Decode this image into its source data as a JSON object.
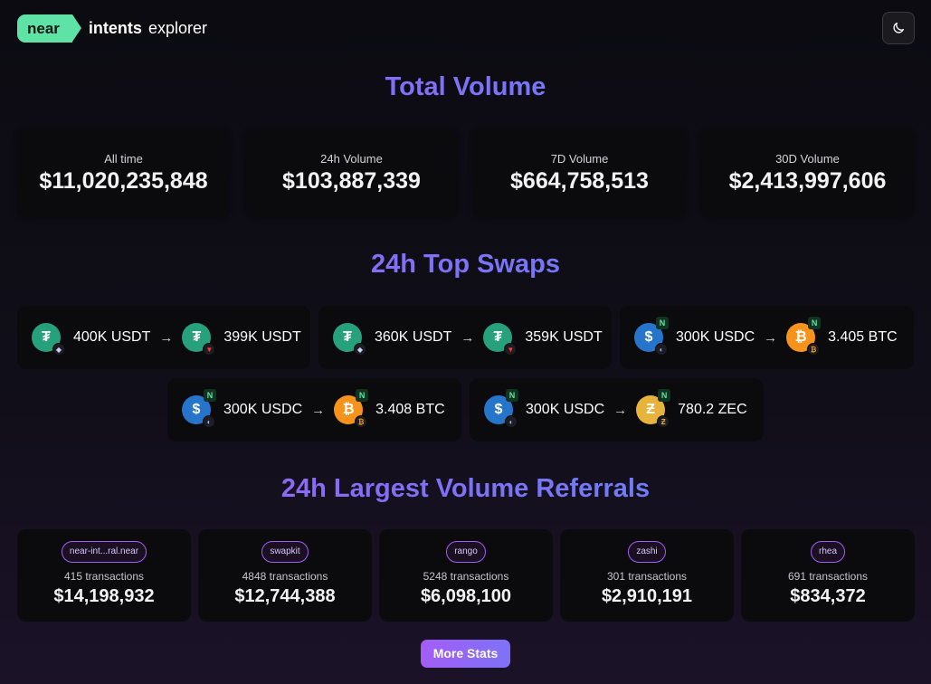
{
  "header": {
    "logo_near": "near",
    "logo_intents": "intents",
    "logo_explorer": "explorer"
  },
  "total_volume": {
    "title": "Total Volume",
    "cards": [
      {
        "label": "All time",
        "value": "$11,020,235,848"
      },
      {
        "label": "24h Volume",
        "value": "$103,887,339"
      },
      {
        "label": "7D Volume",
        "value": "$664,758,513"
      },
      {
        "label": "30D Volume",
        "value": "$2,413,997,606"
      }
    ]
  },
  "top_swaps": {
    "title": "24h Top Swaps",
    "swaps": [
      {
        "from_amount": "400K USDT",
        "to_amount": "399K USDT",
        "from_icon": "usdt-icon",
        "to_icon": "usdt-icon",
        "from_chain": "ethereum-icon",
        "to_chain": "tron-icon"
      },
      {
        "from_amount": "360K USDT",
        "to_amount": "359K USDT",
        "from_icon": "usdt-icon",
        "to_icon": "usdt-icon",
        "from_chain": "ethereum-icon",
        "to_chain": "tron-icon"
      },
      {
        "from_amount": "300K USDC",
        "to_amount": "3.405 BTC",
        "from_icon": "usdc-icon",
        "to_icon": "btc-icon",
        "from_chain": "usdc-chain-icon",
        "to_chain": "bitcoin-chain-icon"
      },
      {
        "from_amount": "300K USDC",
        "to_amount": "3.408 BTC",
        "from_icon": "usdc-icon",
        "to_icon": "btc-icon",
        "from_chain": "usdc-chain-icon",
        "to_chain": "bitcoin-chain-icon"
      },
      {
        "from_amount": "300K USDC",
        "to_amount": "780.2 ZEC",
        "from_icon": "usdc-icon",
        "to_icon": "zec-icon",
        "from_chain": "usdc-chain-icon",
        "to_chain": "zcash-chain-icon"
      }
    ]
  },
  "referrals": {
    "title": "24h Largest Volume Referrals",
    "cards": [
      {
        "name": "near-int...ral.near",
        "transactions": "415 transactions",
        "value": "$14,198,932"
      },
      {
        "name": "swapkit",
        "transactions": "4848 transactions",
        "value": "$12,744,388"
      },
      {
        "name": "rango",
        "transactions": "5248 transactions",
        "value": "$6,098,100"
      },
      {
        "name": "zashi",
        "transactions": "301 transactions",
        "value": "$2,910,191"
      },
      {
        "name": "rhea",
        "transactions": "691 transactions",
        "value": "$834,372"
      }
    ]
  },
  "more_stats_label": "More Stats",
  "colors": {
    "accent_green": "#5fe2a6",
    "accent_purple": "#a35df5",
    "accent_blue": "#5a8df8",
    "card_bg": "#0b0b0d"
  }
}
